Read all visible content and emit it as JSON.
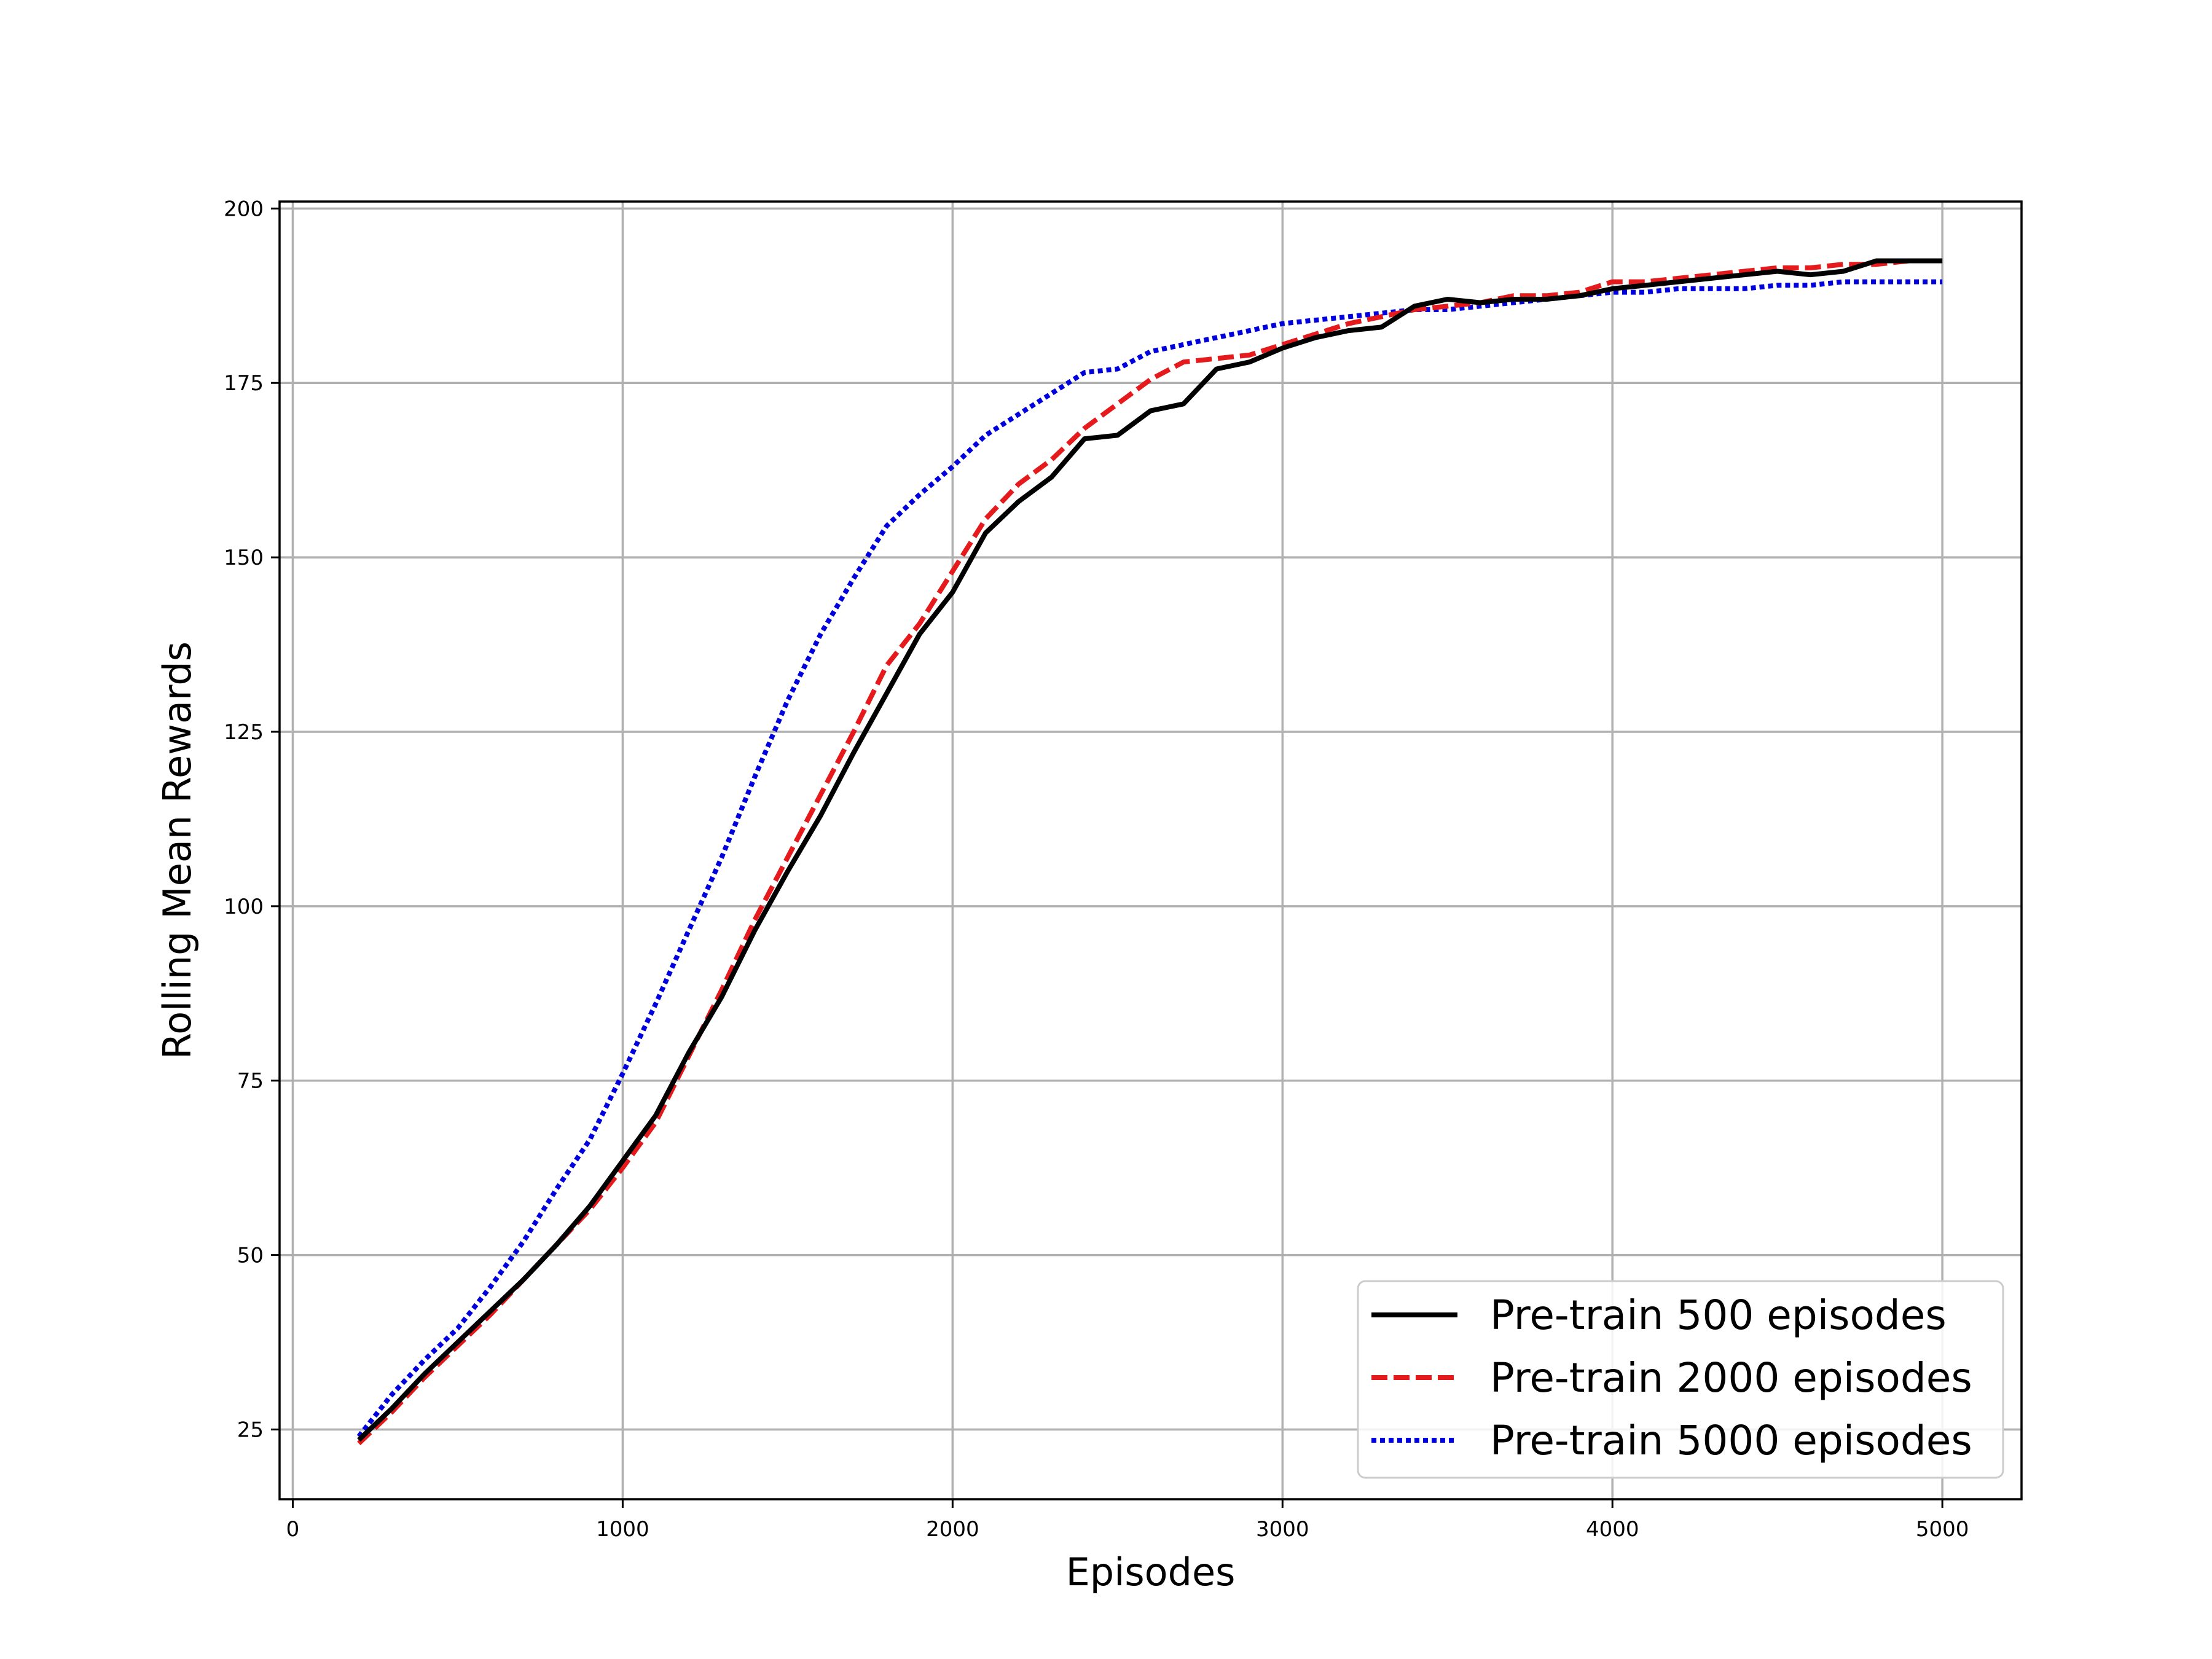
{
  "chart_data": {
    "type": "line",
    "xlabel": "Episodes",
    "ylabel": "Rolling Mean Rewards",
    "xlim": [
      -40,
      5240
    ],
    "ylim": [
      15,
      201
    ],
    "xticks": [
      0,
      1000,
      2000,
      3000,
      4000,
      5000
    ],
    "yticks": [
      25,
      50,
      75,
      100,
      125,
      150,
      175,
      200
    ],
    "grid": true,
    "legend_position": "lower-right",
    "x": [
      200,
      300,
      400,
      500,
      600,
      700,
      800,
      900,
      1000,
      1100,
      1200,
      1300,
      1400,
      1500,
      1600,
      1700,
      1800,
      1900,
      2000,
      2100,
      2200,
      2300,
      2400,
      2500,
      2600,
      2700,
      2800,
      2900,
      3000,
      3100,
      3200,
      3300,
      3400,
      3500,
      3600,
      3700,
      3800,
      3900,
      4000,
      4100,
      4200,
      4300,
      4400,
      4500,
      4600,
      4700,
      4800,
      4900,
      5000
    ],
    "series": [
      {
        "name": "Pre-train 500 episodes",
        "color": "#000000",
        "dash": "solid",
        "values": [
          23.5,
          28,
          33,
          37.5,
          42,
          46.5,
          51.5,
          57,
          63.5,
          70,
          79,
          87,
          96.5,
          105,
          113,
          122,
          130.5,
          139,
          145,
          153.5,
          158,
          161.5,
          167,
          167.5,
          171,
          172,
          177,
          178,
          180,
          181.5,
          182.5,
          183,
          186,
          187,
          186.5,
          187,
          187,
          187.5,
          188.5,
          189,
          189.5,
          190,
          190.5,
          191,
          190.5,
          191,
          192.5,
          192.5,
          192.5
        ]
      },
      {
        "name": "Pre-train 2000 episodes",
        "color": "#e41a1c",
        "dash": "dashed",
        "values": [
          23,
          27.5,
          32.5,
          37,
          41.5,
          46.5,
          51.5,
          56.5,
          62.5,
          69,
          78.5,
          88,
          98,
          107,
          116,
          125,
          134.5,
          140.5,
          148,
          155.5,
          160.5,
          164,
          168.5,
          172,
          175.5,
          178,
          178.5,
          179,
          180.5,
          182,
          183.5,
          184.5,
          185.5,
          186,
          186.5,
          187.5,
          187.5,
          188,
          189.5,
          189.5,
          190,
          190.5,
          191,
          191.5,
          191.5,
          192,
          192,
          192.5,
          192.5
        ]
      },
      {
        "name": "Pre-train 5000 episodes",
        "color": "#0000dd",
        "dash": "dotted",
        "values": [
          24,
          30,
          35,
          39.5,
          45.5,
          52,
          59.5,
          66.5,
          76,
          86,
          96.5,
          107,
          118.5,
          129.5,
          139,
          147,
          154.5,
          159,
          163,
          167.5,
          170.5,
          173.5,
          176.5,
          177,
          179.5,
          180.5,
          181.5,
          182.5,
          183.5,
          184,
          184.5,
          185,
          185.5,
          185.5,
          186,
          186.5,
          187,
          187.5,
          188,
          188,
          188.5,
          188.5,
          188.5,
          189,
          189,
          189.5,
          189.5,
          189.5,
          189.5
        ]
      }
    ]
  }
}
